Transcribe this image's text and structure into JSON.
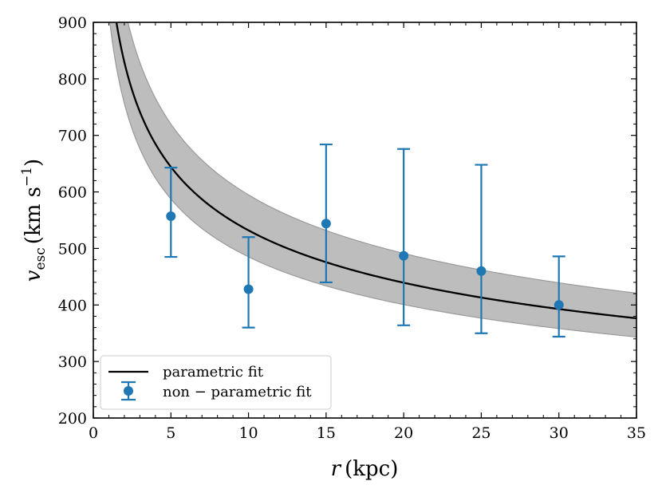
{
  "chart_data": {
    "type": "line",
    "title": "",
    "xlabel": {
      "var": "r",
      "unit": "(kpc)"
    },
    "ylabel": {
      "var": "v",
      "sub": "esc",
      "unit_open": "(km s",
      "sup": "−1",
      "unit_close": ")"
    },
    "xlim": [
      0,
      35
    ],
    "ylim": [
      200,
      900
    ],
    "xticks": [
      0,
      5,
      10,
      15,
      20,
      25,
      30,
      35
    ],
    "yticks": [
      200,
      300,
      400,
      500,
      600,
      700,
      800,
      900
    ],
    "x_minor_step": 1,
    "y_minor_step": 20,
    "colors": {
      "fit": "#000000",
      "band": "#bdbdbd",
      "band_edge": "#9a9a9a",
      "points": "#1f77b4"
    },
    "series": [
      {
        "name": "parametric fit",
        "kind": "line",
        "model": {
          "form": "v0 * (r/r0)^(-alpha)",
          "v0": 532,
          "r0": 10,
          "alpha": 0.276
        },
        "band_upper_factor": 1.118,
        "band_lower_factor": 0.912
      },
      {
        "name": "non − parametric fit",
        "kind": "errorbar",
        "points": [
          {
            "x": 5,
            "y": 557,
            "y_low": 485,
            "y_high": 643
          },
          {
            "x": 10,
            "y": 428,
            "y_low": 360,
            "y_high": 520
          },
          {
            "x": 15,
            "y": 544,
            "y_low": 440,
            "y_high": 684
          },
          {
            "x": 20,
            "y": 487,
            "y_low": 364,
            "y_high": 676
          },
          {
            "x": 25,
            "y": 460,
            "y_low": 350,
            "y_high": 648
          },
          {
            "x": 30,
            "y": 400,
            "y_low": 344,
            "y_high": 486
          }
        ]
      }
    ],
    "legend": {
      "position": "lower-left",
      "entries": [
        "parametric fit",
        "non − parametric fit"
      ]
    }
  }
}
